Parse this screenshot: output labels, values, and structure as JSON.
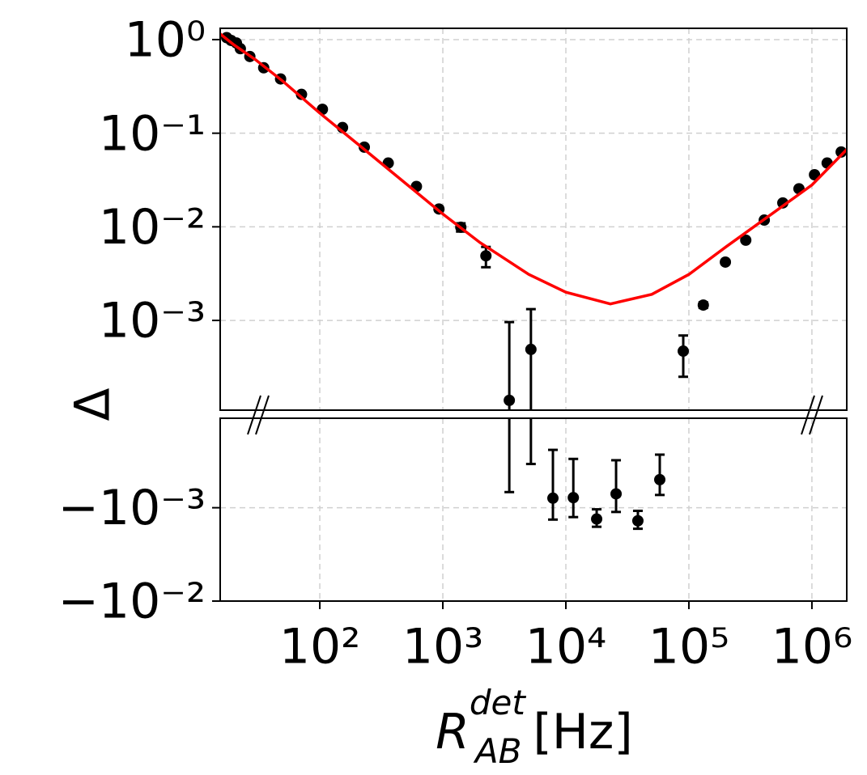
{
  "chart_data": {
    "type": "scatter",
    "y_label": "Δ",
    "x_label": {
      "symbol": "R",
      "subscript": "AB",
      "superscript": "det",
      "unit": "[Hz]"
    },
    "xscale": "log",
    "xlim": [
      15.5,
      1920000
    ],
    "xticks": [
      {
        "value": 100,
        "label": "10²"
      },
      {
        "value": 1000,
        "label": "10³"
      },
      {
        "value": 10000,
        "label": "10⁴"
      },
      {
        "value": 100000,
        "label": "10⁵"
      },
      {
        "value": 1000000,
        "label": "10⁶"
      }
    ],
    "grid": true,
    "panels": [
      {
        "yscale": "log",
        "ylim": [
          0.00011,
          1.32
        ],
        "yticks": [
          {
            "value": 1,
            "label": "10⁰"
          },
          {
            "value": 0.1,
            "label": "10⁻¹"
          },
          {
            "value": 0.01,
            "label": "10⁻²"
          },
          {
            "value": 0.001,
            "label": "10⁻³"
          }
        ]
      },
      {
        "yscale": "log",
        "ylim": [
          -0.01,
          -0.00011
        ],
        "yticks": [
          {
            "value": -0.001,
            "label": "−10⁻³"
          },
          {
            "value": -0.01,
            "label": "−10⁻²"
          }
        ]
      }
    ],
    "series": [
      {
        "kind": "errorbar",
        "color": "#000000",
        "x": [
          17.5,
          19,
          21,
          22.6,
          27,
          35,
          48,
          71,
          105,
          153,
          230,
          360,
          610,
          930,
          1400,
          2240,
          3470,
          5200,
          7850,
          11500,
          17800,
          25600,
          38500,
          58000,
          90000,
          131000,
          198000,
          290000,
          410000,
          580000,
          785000,
          1050000,
          1330000,
          1730000
        ],
        "values": [
          1.05,
          0.98,
          0.92,
          0.8,
          0.66,
          0.5,
          0.38,
          0.26,
          0.18,
          0.115,
          0.071,
          0.048,
          0.027,
          0.0155,
          0.0099,
          0.0049,
          0.00014,
          0.00049,
          -0.00079,
          -0.00078,
          -0.00132,
          -0.00071,
          -0.00138,
          -0.0005,
          0.00047,
          0.00146,
          0.0042,
          0.0072,
          0.0118,
          0.018,
          0.0255,
          0.036,
          0.048,
          0.063
        ],
        "errors": [
          0.01,
          0.01,
          0.01,
          0.01,
          0.01,
          0.005,
          0.004,
          0.003,
          0.002,
          0.001,
          0.001,
          0.0005,
          0.0003,
          0.0008,
          0.001,
          0.0012,
          0.00082,
          0.00083,
          0.00055,
          0.00048,
          0.00028,
          0.0004,
          0.0003,
          0.00023,
          0.00022,
          0.0001,
          0.0002,
          0.0002,
          0.0003,
          0.0003,
          0.0004,
          0.0004,
          0.0005,
          0.0005
        ]
      },
      {
        "kind": "line",
        "color": "#ff0000",
        "x": [
          15.5,
          20,
          30,
          50,
          100,
          200,
          500,
          1000,
          2000,
          5000,
          10000,
          23000,
          50000,
          100000,
          200000,
          500000,
          1000000,
          1920000
        ],
        "values": [
          1.15,
          0.88,
          0.61,
          0.36,
          0.164,
          0.078,
          0.029,
          0.0137,
          0.0068,
          0.0031,
          0.002,
          0.0015,
          0.0019,
          0.0031,
          0.0061,
          0.0145,
          0.028,
          0.067
        ]
      }
    ]
  }
}
